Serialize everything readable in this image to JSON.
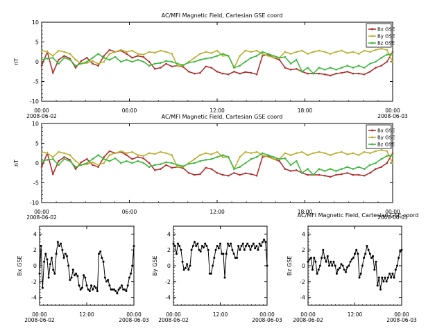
{
  "chart_data": [
    {
      "type": "line",
      "title": "AC/MFI  Magnetic Field, Cartesian GSE coord",
      "ylabel": "nT",
      "ylim": [
        -10,
        10
      ],
      "yticks": [
        "10",
        "5",
        "0",
        "-5",
        "-10"
      ],
      "xlim": [
        0,
        24
      ],
      "xticks": [
        {
          "x": 0,
          "label": "00:00",
          "sub": "2008-06-02"
        },
        {
          "x": 6,
          "label": "06:00",
          "sub": ""
        },
        {
          "x": 12,
          "label": "12:00",
          "sub": ""
        },
        {
          "x": 18,
          "label": "18:00",
          "sub": ""
        },
        {
          "x": 24,
          "label": "00:00",
          "sub": "2008-06-03"
        }
      ],
      "legend": "top-right",
      "series": [
        {
          "name": "Bx GSE",
          "color": "#b03030",
          "values": [
            -1.0,
            2.5,
            -2.8,
            0.5,
            1.5,
            0.8,
            -1.5,
            0.2,
            1.0,
            -0.5,
            -1.0,
            1.5,
            3.0,
            2.5,
            2.8,
            2.0,
            1.0,
            1.5,
            1.2,
            0.0,
            -1.8,
            -1.5,
            -0.5,
            -1.2,
            -1.0,
            -1.3,
            -2.5,
            -3.0,
            -2.8,
            -1.2,
            -1.5,
            -2.5,
            -3.0,
            -3.2,
            -2.5,
            -3.0,
            -2.6,
            -2.8,
            -3.2,
            1.5,
            1.8,
            1.0,
            0.5,
            -1.5,
            -2.0,
            -1.8,
            -2.5,
            -3.0,
            -3.0,
            -3.0,
            -3.2,
            -3.5,
            -3.0,
            -2.8,
            -2.5,
            -3.0,
            -3.0,
            -3.2,
            -2.5,
            -1.5,
            -1.0,
            0.0,
            2.5
          ]
        },
        {
          "name": "By GSE",
          "color": "#b8b030",
          "values": [
            2.8,
            2.5,
            1.5,
            2.8,
            2.5,
            2.0,
            0.5,
            -0.5,
            -0.3,
            0.2,
            -0.5,
            0.0,
            2.0,
            2.5,
            3.0,
            2.5,
            2.8,
            2.0,
            1.8,
            2.5,
            2.3,
            2.8,
            2.5,
            2.0,
            -1.0,
            -1.0,
            0.0,
            1.0,
            2.0,
            2.5,
            2.2,
            2.8,
            1.5,
            1.5,
            -1.5,
            1.5,
            2.8,
            2.5,
            2.8,
            2.0,
            1.5,
            1.0,
            1.0,
            2.5,
            2.0,
            2.5,
            2.8,
            2.0,
            2.5,
            2.8,
            2.5,
            2.0,
            2.5,
            2.8,
            2.2,
            2.5,
            2.0,
            2.8,
            2.5,
            3.0,
            3.3,
            3.0,
            0.0
          ]
        },
        {
          "name": "Bz GSE",
          "color": "#3cb83c",
          "values": [
            0.5,
            0.8,
            1.0,
            -0.5,
            1.0,
            0.5,
            -1.0,
            -0.5,
            0.0,
            1.0,
            2.0,
            1.0,
            0.5,
            1.2,
            0.0,
            0.5,
            0.0,
            0.5,
            0.0,
            -1.0,
            -0.5,
            -0.3,
            0.2,
            0.0,
            -0.5,
            -0.8,
            -0.2,
            0.0,
            0.5,
            0.8,
            1.0,
            1.5,
            2.0,
            1.5,
            -1.5,
            -1.0,
            0.0,
            1.0,
            1.5,
            2.5,
            2.0,
            1.5,
            1.0,
            1.2,
            -0.5,
            0.5,
            -2.5,
            -1.5,
            -3.0,
            -1.5,
            -2.0,
            -1.5,
            -2.0,
            -1.5,
            -1.0,
            -1.5,
            -1.0,
            -1.5,
            -0.5,
            0.0,
            1.0,
            1.8,
            2.0
          ]
        }
      ]
    },
    {
      "type": "line",
      "title": "AC/MFI  Magnetic Field, Cartesian GSE coord",
      "ylabel": "nT",
      "ylim": [
        -10,
        10
      ],
      "yticks": [
        "10",
        "5",
        "0",
        "-5",
        "-10"
      ],
      "xlim": [
        0,
        24
      ],
      "xticks": [
        {
          "x": 0,
          "label": "00:00",
          "sub": "2008-06-02"
        },
        {
          "x": 6,
          "label": "06:00",
          "sub": ""
        },
        {
          "x": 12,
          "label": "12:00",
          "sub": ""
        },
        {
          "x": 18,
          "label": "18:00",
          "sub": ""
        },
        {
          "x": 24,
          "label": "00:00",
          "sub": "2008-06-03"
        }
      ],
      "legend": "top-right",
      "series": [
        {
          "name": "Bx GSE",
          "color": "#b03030",
          "values": [
            -1.0,
            2.5,
            -2.8,
            0.5,
            1.5,
            0.8,
            -1.5,
            0.2,
            1.0,
            -0.5,
            -1.0,
            1.5,
            3.0,
            2.5,
            2.8,
            2.0,
            1.0,
            1.5,
            1.2,
            0.0,
            -1.8,
            -1.5,
            -0.5,
            -1.2,
            -1.0,
            -1.3,
            -2.5,
            -3.0,
            -2.8,
            -1.2,
            -1.5,
            -2.5,
            -3.0,
            -3.2,
            -2.5,
            -3.0,
            -2.6,
            -2.8,
            -3.2,
            1.5,
            1.8,
            1.0,
            0.5,
            -1.5,
            -2.0,
            -1.8,
            -2.5,
            -3.0,
            -3.0,
            -3.0,
            -3.2,
            -3.5,
            -3.0,
            -2.8,
            -2.5,
            -3.0,
            -3.0,
            -3.2,
            -2.5,
            -1.5,
            -1.0,
            0.0,
            2.5
          ]
        },
        {
          "name": "By GSE",
          "color": "#b8b030",
          "values": [
            2.8,
            2.5,
            1.5,
            2.8,
            2.5,
            2.0,
            0.5,
            -0.5,
            -0.3,
            0.2,
            -0.5,
            0.0,
            2.0,
            2.5,
            3.0,
            2.5,
            2.8,
            2.0,
            1.8,
            2.5,
            2.3,
            2.8,
            2.5,
            2.0,
            -1.0,
            -1.0,
            0.0,
            1.0,
            2.0,
            2.5,
            2.2,
            2.8,
            1.5,
            1.5,
            -1.5,
            1.5,
            2.8,
            2.5,
            2.8,
            2.0,
            1.5,
            1.0,
            1.0,
            2.5,
            2.0,
            2.5,
            2.8,
            2.0,
            2.5,
            2.8,
            2.5,
            2.0,
            2.5,
            2.8,
            2.2,
            2.5,
            2.0,
            2.8,
            2.5,
            3.0,
            3.3,
            3.0,
            0.0
          ]
        },
        {
          "name": "Bz GSE",
          "color": "#3cb83c",
          "values": [
            0.5,
            0.8,
            1.0,
            -0.5,
            1.0,
            0.5,
            -1.0,
            -0.5,
            0.0,
            1.0,
            2.0,
            1.0,
            0.5,
            1.2,
            0.0,
            0.5,
            0.0,
            0.5,
            0.0,
            -1.0,
            -0.5,
            -0.3,
            0.2,
            0.0,
            -0.5,
            -0.8,
            -0.2,
            0.0,
            0.5,
            0.8,
            1.0,
            1.5,
            2.0,
            1.5,
            -1.5,
            -1.0,
            0.0,
            1.0,
            1.5,
            2.5,
            2.0,
            1.5,
            1.0,
            1.2,
            -0.5,
            0.5,
            -2.5,
            -1.5,
            -3.0,
            -1.5,
            -2.0,
            -1.5,
            -2.0,
            -1.5,
            -1.0,
            -1.5,
            -1.0,
            -1.5,
            -0.5,
            0.0,
            1.0,
            1.8,
            2.0
          ]
        }
      ]
    },
    {
      "type": "line",
      "title": "",
      "ylabel": "Bx  GSE",
      "ylim": [
        -5,
        5
      ],
      "yticks": [
        "4",
        "2",
        "0",
        "-2",
        "-4"
      ],
      "xlim": [
        0,
        24
      ],
      "xticks": [
        {
          "x": 0,
          "label": "00:00",
          "sub": "2008-06-02"
        },
        {
          "x": 12,
          "label": "12:00",
          "sub": ""
        },
        {
          "x": 24,
          "label": "00:00",
          "sub": "2008-06-03"
        }
      ],
      "legend": "none",
      "series": [
        {
          "name": "Bx GSE",
          "color": "#000000",
          "values": [
            -1.0,
            2.5,
            -2.8,
            0.5,
            1.5,
            0.8,
            -1.5,
            0.2,
            1.0,
            -0.5,
            -1.0,
            1.5,
            3.0,
            2.5,
            2.8,
            2.0,
            1.0,
            1.5,
            1.2,
            0.0,
            -1.8,
            -1.5,
            -0.5,
            -1.2,
            -1.0,
            -1.3,
            -2.5,
            -3.0,
            -2.8,
            -1.2,
            -1.5,
            -2.5,
            -3.0,
            -3.2,
            -2.5,
            -3.0,
            -2.6,
            -2.8,
            -3.2,
            1.5,
            1.8,
            1.0,
            0.5,
            -1.5,
            -2.0,
            -1.8,
            -2.5,
            -3.0,
            -3.0,
            -3.0,
            -3.2,
            -3.5,
            -3.0,
            -2.8,
            -2.5,
            -3.0,
            -3.0,
            -3.2,
            -2.5,
            -1.5,
            -1.0,
            0.0,
            2.5
          ]
        }
      ]
    },
    {
      "type": "line",
      "title": "",
      "ylabel": "By  GSE",
      "ylim": [
        -5,
        5
      ],
      "yticks": [
        "4",
        "2",
        "0",
        "-2",
        "-4"
      ],
      "xlim": [
        0,
        24
      ],
      "xticks": [
        {
          "x": 0,
          "label": "00:00",
          "sub": "2008-06-02"
        },
        {
          "x": 12,
          "label": "12:00",
          "sub": ""
        },
        {
          "x": 24,
          "label": "00:00",
          "sub": "2008-06-03"
        }
      ],
      "legend": "none",
      "series": [
        {
          "name": "By GSE",
          "color": "#000000",
          "values": [
            2.8,
            2.5,
            1.5,
            2.8,
            2.5,
            2.0,
            0.5,
            -0.5,
            -0.3,
            0.2,
            -0.5,
            0.0,
            2.0,
            2.5,
            3.0,
            2.5,
            2.8,
            2.0,
            1.8,
            2.5,
            2.3,
            2.8,
            2.5,
            2.0,
            -1.0,
            -1.0,
            0.0,
            1.0,
            2.0,
            2.5,
            2.2,
            2.8,
            1.5,
            1.5,
            -1.5,
            1.5,
            2.8,
            2.5,
            2.8,
            2.0,
            1.5,
            1.0,
            1.0,
            2.5,
            2.0,
            2.5,
            2.8,
            2.0,
            2.5,
            2.8,
            2.5,
            2.0,
            2.5,
            2.8,
            2.2,
            2.5,
            2.0,
            2.8,
            2.5,
            3.0,
            3.3,
            3.0,
            0.0
          ]
        }
      ]
    },
    {
      "type": "line",
      "title": "AC/MFI  Magnetic Field, Cartesian GSE coord",
      "ylabel": "Bz  GSE",
      "ylim": [
        -5,
        5
      ],
      "yticks": [
        "4",
        "2",
        "0",
        "-2",
        "-4"
      ],
      "xlim": [
        0,
        24
      ],
      "xticks": [
        {
          "x": 0,
          "label": "00:00",
          "sub": "2008-06-02"
        },
        {
          "x": 12,
          "label": "12:00",
          "sub": ""
        },
        {
          "x": 24,
          "label": "00:00",
          "sub": "2008-06-03"
        }
      ],
      "legend": "none",
      "series": [
        {
          "name": "Bz GSE",
          "color": "#000000",
          "values": [
            0.5,
            0.8,
            1.0,
            -0.5,
            1.0,
            0.5,
            -1.0,
            -0.5,
            0.0,
            1.0,
            2.0,
            1.0,
            0.5,
            1.2,
            0.0,
            0.5,
            0.0,
            0.5,
            0.0,
            -1.0,
            -0.5,
            -0.3,
            0.2,
            0.0,
            -0.5,
            -0.8,
            -0.2,
            0.0,
            0.5,
            0.8,
            1.0,
            1.5,
            2.0,
            1.5,
            -1.5,
            -1.0,
            0.0,
            1.0,
            1.5,
            2.5,
            2.0,
            1.5,
            1.0,
            1.2,
            -0.5,
            0.5,
            -2.5,
            -1.5,
            -3.0,
            -1.5,
            -2.0,
            -1.5,
            -2.0,
            -1.5,
            -1.0,
            -1.5,
            -1.0,
            -1.5,
            -0.5,
            0.0,
            1.0,
            1.8,
            2.0
          ]
        }
      ]
    }
  ]
}
